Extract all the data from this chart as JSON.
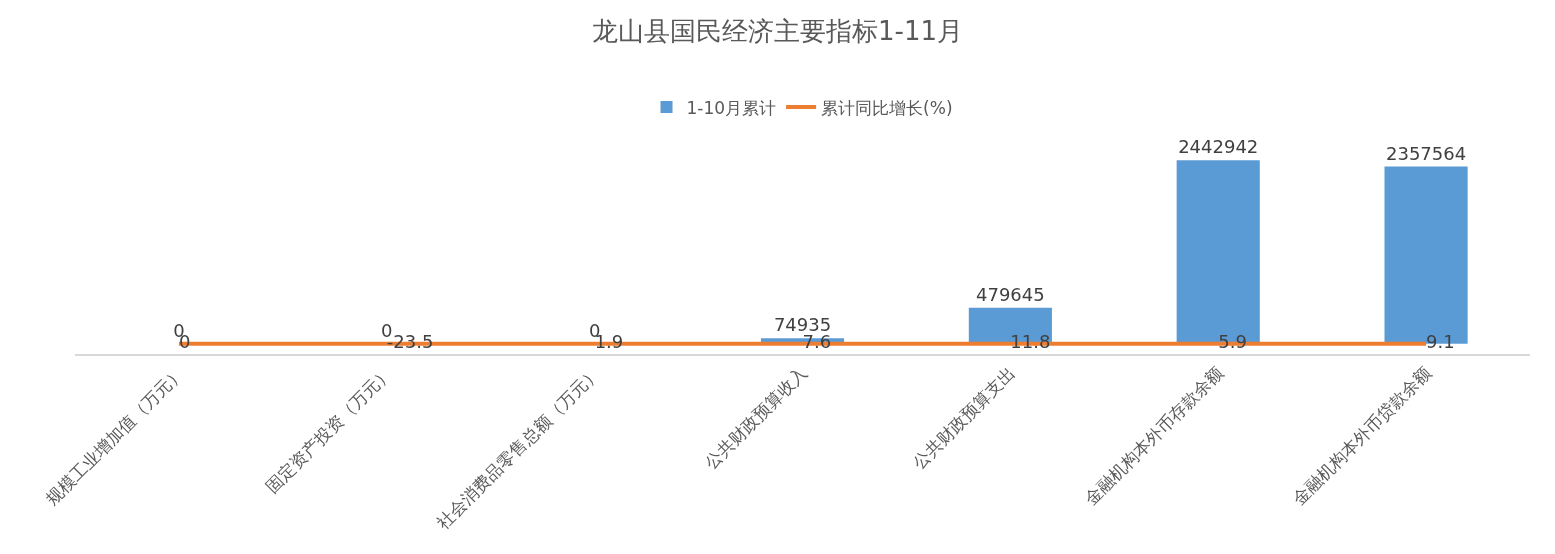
{
  "chart_data": {
    "type": "bar",
    "title": "龙山县国民经济主要指标1-11月",
    "categories": [
      "规模工业增加值（万元）",
      "固定资产投资（万元）",
      "社会消费品零售总额（万元）",
      "公共财政预算收入",
      "公共财政预算支出",
      "金融机构本外币存款余额",
      "金融机构本外币贷款余额"
    ],
    "series": [
      {
        "name": "1-10月累计",
        "color": "#5b9bd5",
        "values": [
          0,
          0,
          0,
          74935,
          479645,
          2442942,
          2357564
        ]
      },
      {
        "name": "累计同比增长(%)",
        "type": "line",
        "color": "#ed7d31",
        "values": [
          0,
          -23.5,
          1.9,
          7.6,
          11.8,
          5.9,
          9.1
        ],
        "marker": "none",
        "line_style": "solid"
      }
    ],
    "data_labels": true,
    "grid": false,
    "legend": "top"
  }
}
